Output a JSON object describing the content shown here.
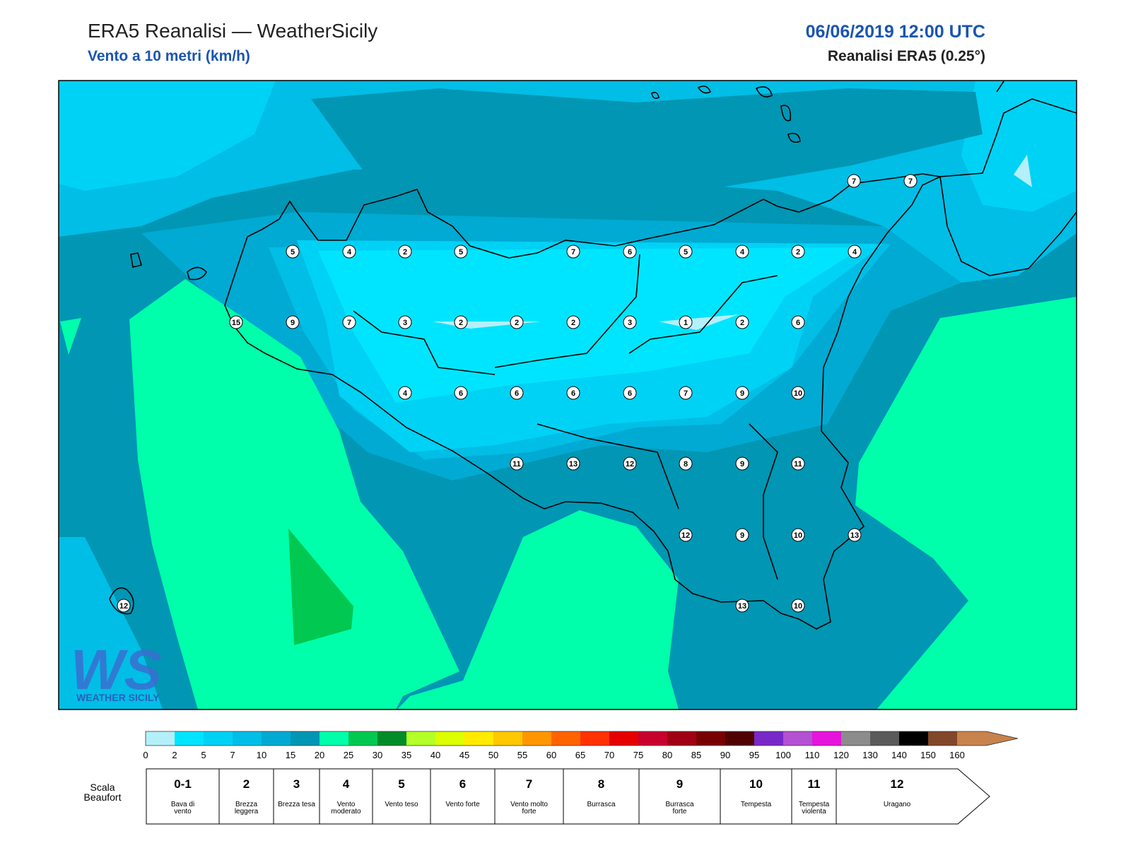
{
  "header": {
    "title": "ERA5 Reanalisi — WeatherSicily",
    "subtitle": "Vento a 10 metri (km/h)",
    "datetime": "06/06/2019 12:00 UTC",
    "source": "Reanalisi ERA5 (0.25°)"
  },
  "map": {
    "stations": [
      7,
      7,
      5,
      4,
      2,
      5,
      7,
      6,
      5,
      4,
      2,
      4,
      15,
      9,
      7,
      3,
      2,
      2,
      2,
      3,
      1,
      2,
      6,
      4,
      6,
      6,
      6,
      6,
      7,
      9,
      10,
      11,
      13,
      12,
      8,
      9,
      11,
      12,
      9,
      10,
      13,
      13,
      10,
      12
    ]
  },
  "logo": {
    "mark": "WS",
    "text": "WEATHER SICILY"
  },
  "colorbar": {
    "ticks": [
      0,
      2,
      5,
      7,
      10,
      15,
      20,
      25,
      30,
      35,
      40,
      45,
      50,
      55,
      60,
      65,
      70,
      75,
      80,
      85,
      90,
      95,
      100,
      110,
      120,
      130,
      140,
      150,
      160
    ],
    "colors": [
      "#b4f0fa",
      "#00e5ff",
      "#00d2f5",
      "#00bee6",
      "#00aad2",
      "#0096b4",
      "#00ffaa",
      "#00c850",
      "#008c28",
      "#b4ff28",
      "#dcff00",
      "#ffeb00",
      "#ffc800",
      "#ff9600",
      "#ff6400",
      "#ff3200",
      "#e60000",
      "#c8002d",
      "#a00014",
      "#780000",
      "#500000",
      "#7828c8",
      "#b450d2",
      "#e614dc",
      "#8c8c8c",
      "#5a5a5a",
      "#000000",
      "#824628",
      "#c8824b"
    ]
  },
  "beaufort": {
    "label": "Scala Beaufort",
    "levels": [
      {
        "force": "0-1",
        "name": "Bava di vento"
      },
      {
        "force": "2",
        "name": "Brezza leggera"
      },
      {
        "force": "3",
        "name": "Brezza tesa"
      },
      {
        "force": "4",
        "name": "Vento moderato"
      },
      {
        "force": "5",
        "name": "Vento teso"
      },
      {
        "force": "6",
        "name": "Vento forte"
      },
      {
        "force": "7",
        "name": "Vento molto forte"
      },
      {
        "force": "8",
        "name": "Burrasca"
      },
      {
        "force": "9",
        "name": "Burrasca forte"
      },
      {
        "force": "10",
        "name": "Tempesta"
      },
      {
        "force": "11",
        "name": "Tempesta violenta"
      },
      {
        "force": "12",
        "name": "Uragano"
      }
    ]
  }
}
